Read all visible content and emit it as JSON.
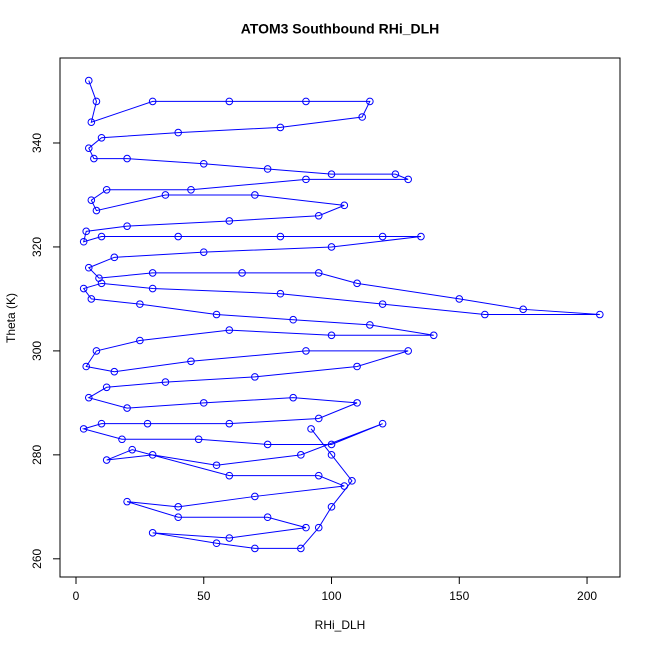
{
  "chart_data": {
    "type": "scatter",
    "title": "ATOM3 Southbound RHi_DLH",
    "x_label": "RHi_DLH",
    "y_label": "Theta (K)",
    "color": "#0000ff",
    "x": [
      5,
      8,
      6,
      30,
      60,
      90,
      115,
      112,
      80,
      40,
      10,
      5,
      7,
      20,
      50,
      75,
      100,
      125,
      130,
      90,
      45,
      12,
      6,
      8,
      35,
      70,
      105,
      95,
      60,
      20,
      4,
      3,
      10,
      40,
      80,
      120,
      135,
      100,
      50,
      15,
      5,
      9,
      30,
      65,
      95,
      110,
      150,
      175,
      205,
      160,
      120,
      80,
      30,
      10,
      3,
      6,
      25,
      55,
      85,
      115,
      140,
      100,
      60,
      25,
      8,
      4,
      15,
      45,
      90,
      130,
      110,
      70,
      35,
      12,
      5,
      20,
      50,
      85,
      110,
      95,
      60,
      28,
      10,
      3,
      18,
      48,
      75,
      100,
      120,
      88,
      55,
      30,
      12,
      22,
      60,
      95,
      105,
      70,
      40,
      20,
      40,
      75,
      90,
      60,
      30,
      55,
      70,
      88,
      95,
      100,
      108,
      100,
      92
    ],
    "y": [
      352,
      348,
      344,
      348,
      348,
      348,
      348,
      345,
      343,
      342,
      341,
      339,
      337,
      337,
      336,
      335,
      334,
      334,
      333,
      333,
      331,
      331,
      329,
      327,
      330,
      330,
      328,
      326,
      325,
      324,
      323,
      321,
      322,
      322,
      322,
      322,
      322,
      320,
      319,
      318,
      316,
      314,
      315,
      315,
      315,
      313,
      310,
      308,
      307,
      307,
      309,
      311,
      312,
      313,
      312,
      310,
      309,
      307,
      306,
      305,
      303,
      303,
      304,
      302,
      300,
      297,
      296,
      298,
      300,
      300,
      297,
      295,
      294,
      293,
      291,
      289,
      290,
      291,
      290,
      287,
      286,
      286,
      286,
      285,
      283,
      283,
      282,
      282,
      286,
      280,
      278,
      280,
      279,
      281,
      276,
      276,
      274,
      272,
      270,
      271,
      268,
      268,
      266,
      264,
      265,
      263,
      262,
      262,
      266,
      270,
      275,
      280,
      285
    ],
    "xlim": [
      -6.26,
      212.9
    ],
    "ylim": [
      256.5,
      356.35
    ],
    "xticks": [
      0,
      50,
      100,
      150,
      200
    ],
    "yticks": [
      260,
      280,
      300,
      320,
      340
    ]
  }
}
